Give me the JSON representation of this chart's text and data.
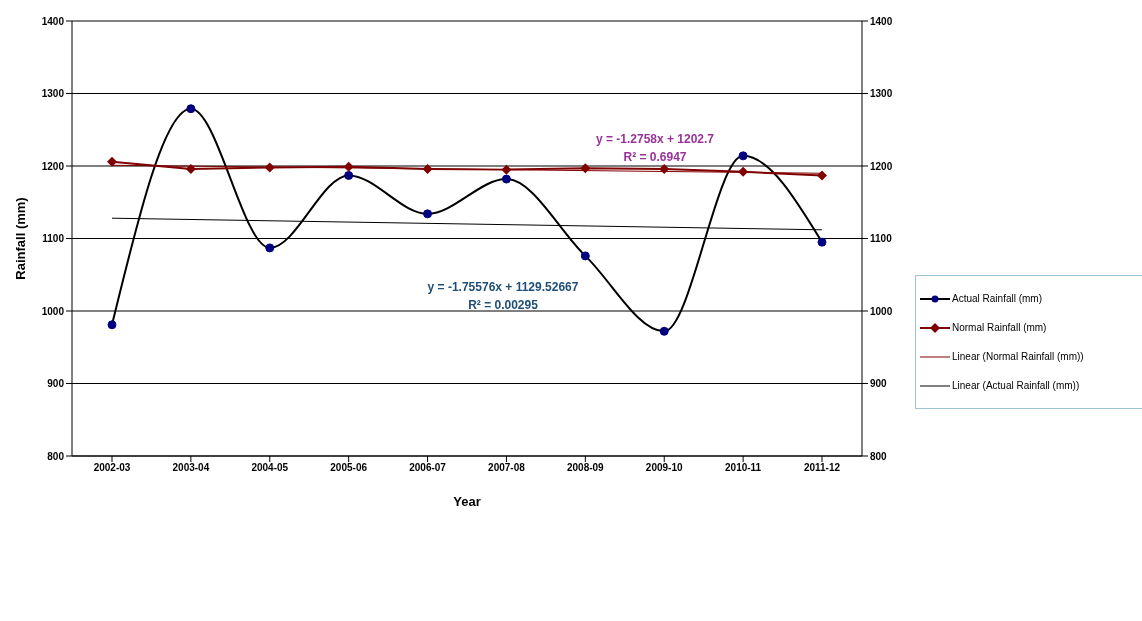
{
  "chart_data": {
    "type": "line",
    "xlabel": "Year",
    "ylabel": "Rainfall (mm)",
    "categories": [
      "2002-03",
      "2003-04",
      "2004-05",
      "2005-06",
      "2006-07",
      "2007-08",
      "2008-09",
      "2009-10",
      "2010-11",
      "2011-12"
    ],
    "series": [
      {
        "name": "Actual Rainfall (mm)",
        "color": "#000080",
        "marker": "circle",
        "values": [
          981,
          1279,
          1087,
          1187,
          1134,
          1182,
          1076,
          972,
          1214,
          1095
        ]
      },
      {
        "name": "Normal Rainfall (mm)",
        "color": "#800000",
        "marker": "diamond",
        "values": [
          1206,
          1196,
          1198,
          1199,
          1196,
          1195,
          1197,
          1196,
          1192,
          1187
        ]
      },
      {
        "name": "Linear (Normal Rainfall (mm))",
        "color": "#800000",
        "marker": "none",
        "values": [
          1201,
          null,
          null,
          null,
          null,
          null,
          null,
          null,
          null,
          1190
        ]
      },
      {
        "name": "Linear (Actual Rainfall (mm))",
        "color": "#000000",
        "marker": "none",
        "values": [
          1128,
          null,
          null,
          null,
          null,
          null,
          null,
          null,
          null,
          1112
        ]
      }
    ],
    "ylim": [
      800,
      1400
    ],
    "yticks": [
      800,
      900,
      1000,
      1100,
      1200,
      1300,
      1400
    ],
    "y2lim": [
      800,
      1400
    ],
    "y2ticks": [
      800,
      900,
      1000,
      1100,
      1200,
      1300,
      1400
    ],
    "grid": "y",
    "legend": "right",
    "line_style": "solid",
    "annotations": [
      "y = -1.2758x + 1202.7\nR² = 0.6947",
      "y = -1.75576x + 1129.52667\nR² = 0.00295"
    ]
  }
}
